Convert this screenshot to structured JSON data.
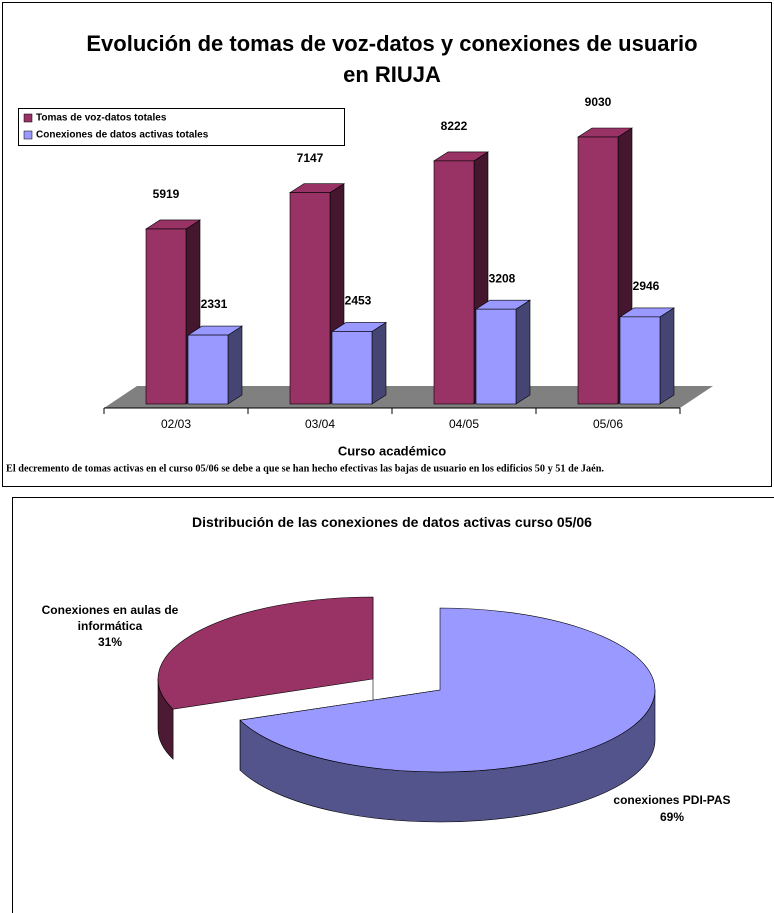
{
  "chart_data": [
    {
      "type": "bar3d",
      "title": "Evolución de tomas de voz-datos y conexiones de usuario en RIUJA",
      "categories": [
        "02/03",
        "03/04",
        "04/05",
        "05/06"
      ],
      "series": [
        {
          "name": "Tomas de voz-datos totales",
          "color": "#993366",
          "values": [
            5919,
            7147,
            8222,
            9030
          ]
        },
        {
          "name": "Conexiones de datos activas totales",
          "color": "#9999ff",
          "values": [
            2331,
            2453,
            3208,
            2946
          ]
        }
      ],
      "xlabel": "Curso académico",
      "note": "El decremento de tomas activas en el curso 05/06 se debe a que se han hecho efectivas las bajas de usuario en los edificios 50 y 51 de Jaén.",
      "legend": "upper left"
    },
    {
      "type": "pie3d",
      "title": "Distribución de las conexiones de datos activas curso 05/06",
      "categories": [
        "Conexiones en aulas de informática",
        "conexiones PDI-PAS"
      ],
      "values": [
        31,
        69
      ],
      "value_labels": [
        "31%",
        "69%"
      ],
      "colors": [
        "#993366",
        "#9999ff"
      ]
    }
  ]
}
